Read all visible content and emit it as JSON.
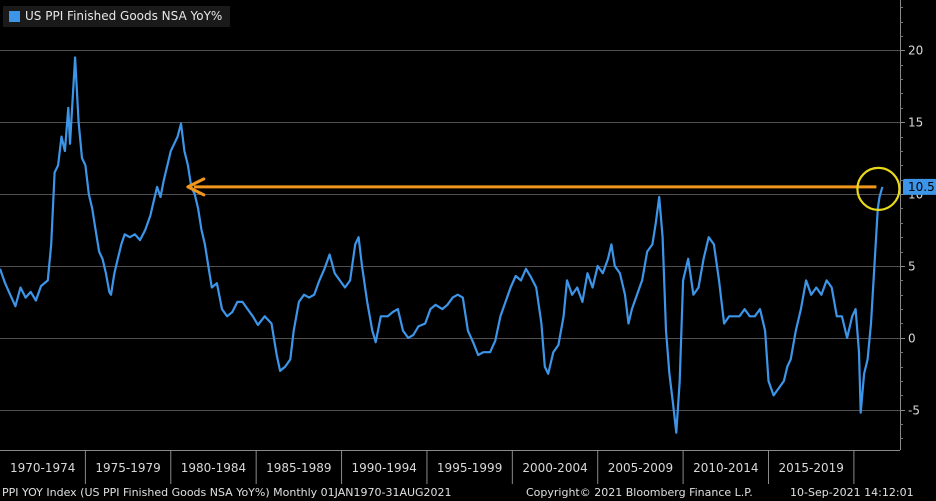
{
  "legend": {
    "label": "US PPI Finished Goods NSA YoY%",
    "color": "#3d95e8"
  },
  "footer": {
    "left": "PPI YOY Index (US PPI Finished Goods NSA YoY%)   Monthly 01JAN1970-31AUG2021",
    "middle": "Copyright© 2021 Bloomberg Finance L.P.",
    "right": "10-Sep-2021 14:12:01"
  },
  "chart_data": {
    "type": "line",
    "x_period_labels": [
      "1970-1974",
      "1975-1979",
      "1980-1984",
      "1985-1989",
      "1990-1994",
      "1995-1999",
      "2000-2004",
      "2005-2009",
      "2010-2014",
      "2015-2019"
    ],
    "yticks": [
      20,
      15,
      10,
      5,
      0,
      -5
    ],
    "ylim": [
      -7.8,
      23.5
    ],
    "xlim": [
      1970.0,
      2022.7
    ],
    "last_value_label": "10.5",
    "colors": {
      "line": "#3d95e8",
      "arrow": "#f0961e",
      "circle": "#e8d81a",
      "grid": "#6a6a6a"
    },
    "series": [
      {
        "name": "US PPI Finished Goods NSA YoY%",
        "points": [
          [
            1970.0,
            4.8
          ],
          [
            1970.3,
            3.8
          ],
          [
            1970.6,
            3.0
          ],
          [
            1970.9,
            2.2
          ],
          [
            1971.2,
            3.5
          ],
          [
            1971.5,
            2.8
          ],
          [
            1971.8,
            3.2
          ],
          [
            1972.1,
            2.6
          ],
          [
            1972.4,
            3.6
          ],
          [
            1972.8,
            4.0
          ],
          [
            1973.0,
            6.5
          ],
          [
            1973.2,
            11.5
          ],
          [
            1973.4,
            12.0
          ],
          [
            1973.6,
            14.0
          ],
          [
            1973.8,
            13.0
          ],
          [
            1974.0,
            16.0
          ],
          [
            1974.1,
            13.5
          ],
          [
            1974.3,
            17.5
          ],
          [
            1974.4,
            19.5
          ],
          [
            1974.6,
            15.0
          ],
          [
            1974.8,
            12.5
          ],
          [
            1975.0,
            12.0
          ],
          [
            1975.2,
            10.0
          ],
          [
            1975.4,
            9.0
          ],
          [
            1975.6,
            7.5
          ],
          [
            1975.8,
            6.0
          ],
          [
            1976.0,
            5.5
          ],
          [
            1976.2,
            4.5
          ],
          [
            1976.4,
            3.2
          ],
          [
            1976.5,
            3.0
          ],
          [
            1976.7,
            4.5
          ],
          [
            1976.9,
            5.5
          ],
          [
            1977.1,
            6.5
          ],
          [
            1977.3,
            7.2
          ],
          [
            1977.6,
            7.0
          ],
          [
            1977.9,
            7.2
          ],
          [
            1978.2,
            6.8
          ],
          [
            1978.5,
            7.5
          ],
          [
            1978.8,
            8.5
          ],
          [
            1979.0,
            9.5
          ],
          [
            1979.2,
            10.5
          ],
          [
            1979.4,
            9.8
          ],
          [
            1979.6,
            11.0
          ],
          [
            1979.8,
            12.0
          ],
          [
            1980.0,
            13.0
          ],
          [
            1980.2,
            13.5
          ],
          [
            1980.4,
            14.0
          ],
          [
            1980.6,
            14.9
          ],
          [
            1980.8,
            13.0
          ],
          [
            1981.0,
            12.0
          ],
          [
            1981.2,
            10.5
          ],
          [
            1981.4,
            10.0
          ],
          [
            1981.6,
            9.0
          ],
          [
            1981.8,
            7.5
          ],
          [
            1982.0,
            6.5
          ],
          [
            1982.2,
            5.0
          ],
          [
            1982.4,
            3.5
          ],
          [
            1982.7,
            3.8
          ],
          [
            1983.0,
            2.0
          ],
          [
            1983.3,
            1.5
          ],
          [
            1983.6,
            1.8
          ],
          [
            1983.9,
            2.5
          ],
          [
            1984.2,
            2.5
          ],
          [
            1984.5,
            2.0
          ],
          [
            1984.8,
            1.5
          ],
          [
            1985.1,
            0.9
          ],
          [
            1985.5,
            1.5
          ],
          [
            1985.9,
            1.0
          ],
          [
            1986.2,
            -1.2
          ],
          [
            1986.4,
            -2.3
          ],
          [
            1986.7,
            -2.0
          ],
          [
            1987.0,
            -1.5
          ],
          [
            1987.2,
            0.5
          ],
          [
            1987.5,
            2.5
          ],
          [
            1987.8,
            3.0
          ],
          [
            1988.1,
            2.8
          ],
          [
            1988.4,
            3.0
          ],
          [
            1988.7,
            4.0
          ],
          [
            1989.0,
            4.8
          ],
          [
            1989.3,
            5.8
          ],
          [
            1989.6,
            4.5
          ],
          [
            1989.9,
            4.0
          ],
          [
            1990.2,
            3.5
          ],
          [
            1990.5,
            4.0
          ],
          [
            1990.8,
            6.5
          ],
          [
            1991.0,
            7.0
          ],
          [
            1991.2,
            5.0
          ],
          [
            1991.5,
            2.5
          ],
          [
            1991.8,
            0.5
          ],
          [
            1992.0,
            -0.3
          ],
          [
            1992.3,
            1.5
          ],
          [
            1992.7,
            1.5
          ],
          [
            1993.0,
            1.8
          ],
          [
            1993.3,
            2.0
          ],
          [
            1993.6,
            0.5
          ],
          [
            1993.9,
            0.0
          ],
          [
            1994.2,
            0.2
          ],
          [
            1994.5,
            0.8
          ],
          [
            1994.9,
            1.0
          ],
          [
            1995.2,
            2.0
          ],
          [
            1995.5,
            2.3
          ],
          [
            1995.9,
            2.0
          ],
          [
            1996.2,
            2.3
          ],
          [
            1996.5,
            2.8
          ],
          [
            1996.8,
            3.0
          ],
          [
            1997.1,
            2.8
          ],
          [
            1997.4,
            0.5
          ],
          [
            1997.7,
            -0.3
          ],
          [
            1998.0,
            -1.2
          ],
          [
            1998.3,
            -1.0
          ],
          [
            1998.7,
            -1.0
          ],
          [
            1999.0,
            -0.2
          ],
          [
            1999.3,
            1.5
          ],
          [
            1999.6,
            2.5
          ],
          [
            1999.9,
            3.5
          ],
          [
            2000.2,
            4.3
          ],
          [
            2000.5,
            4.0
          ],
          [
            2000.8,
            4.8
          ],
          [
            2001.1,
            4.2
          ],
          [
            2001.4,
            3.5
          ],
          [
            2001.7,
            1.0
          ],
          [
            2001.9,
            -2.0
          ],
          [
            2002.1,
            -2.5
          ],
          [
            2002.4,
            -1.0
          ],
          [
            2002.7,
            -0.5
          ],
          [
            2003.0,
            1.5
          ],
          [
            2003.2,
            4.0
          ],
          [
            2003.5,
            3.0
          ],
          [
            2003.8,
            3.5
          ],
          [
            2004.1,
            2.5
          ],
          [
            2004.4,
            4.5
          ],
          [
            2004.7,
            3.5
          ],
          [
            2005.0,
            5.0
          ],
          [
            2005.3,
            4.5
          ],
          [
            2005.6,
            5.5
          ],
          [
            2005.8,
            6.5
          ],
          [
            2006.0,
            5.0
          ],
          [
            2006.3,
            4.5
          ],
          [
            2006.6,
            3.0
          ],
          [
            2006.8,
            1.0
          ],
          [
            2007.0,
            2.0
          ],
          [
            2007.3,
            3.0
          ],
          [
            2007.6,
            4.0
          ],
          [
            2007.9,
            6.0
          ],
          [
            2008.2,
            6.5
          ],
          [
            2008.4,
            8.0
          ],
          [
            2008.6,
            9.8
          ],
          [
            2008.8,
            7.0
          ],
          [
            2009.0,
            0.5
          ],
          [
            2009.2,
            -2.5
          ],
          [
            2009.4,
            -4.5
          ],
          [
            2009.6,
            -6.6
          ],
          [
            2009.8,
            -3.0
          ],
          [
            2010.0,
            4.0
          ],
          [
            2010.3,
            5.5
          ],
          [
            2010.6,
            3.0
          ],
          [
            2010.9,
            3.5
          ],
          [
            2011.2,
            5.5
          ],
          [
            2011.5,
            7.0
          ],
          [
            2011.8,
            6.5
          ],
          [
            2012.1,
            4.0
          ],
          [
            2012.4,
            1.0
          ],
          [
            2012.7,
            1.5
          ],
          [
            2013.0,
            1.5
          ],
          [
            2013.3,
            1.5
          ],
          [
            2013.6,
            2.0
          ],
          [
            2013.9,
            1.5
          ],
          [
            2014.2,
            1.5
          ],
          [
            2014.5,
            2.0
          ],
          [
            2014.8,
            0.5
          ],
          [
            2015.0,
            -3.0
          ],
          [
            2015.3,
            -4.0
          ],
          [
            2015.6,
            -3.5
          ],
          [
            2015.9,
            -3.0
          ],
          [
            2016.1,
            -2.0
          ],
          [
            2016.3,
            -1.5
          ],
          [
            2016.6,
            0.5
          ],
          [
            2016.9,
            2.0
          ],
          [
            2017.2,
            4.0
          ],
          [
            2017.5,
            3.0
          ],
          [
            2017.8,
            3.5
          ],
          [
            2018.1,
            3.0
          ],
          [
            2018.4,
            4.0
          ],
          [
            2018.7,
            3.5
          ],
          [
            2019.0,
            1.5
          ],
          [
            2019.3,
            1.5
          ],
          [
            2019.6,
            0.0
          ],
          [
            2019.9,
            1.5
          ],
          [
            2020.1,
            2.0
          ],
          [
            2020.3,
            -1.0
          ],
          [
            2020.4,
            -5.2
          ],
          [
            2020.6,
            -2.5
          ],
          [
            2020.8,
            -1.5
          ],
          [
            2021.0,
            1.0
          ],
          [
            2021.2,
            5.0
          ],
          [
            2021.4,
            9.0
          ],
          [
            2021.5,
            9.8
          ],
          [
            2021.67,
            10.5
          ]
        ]
      }
    ]
  }
}
